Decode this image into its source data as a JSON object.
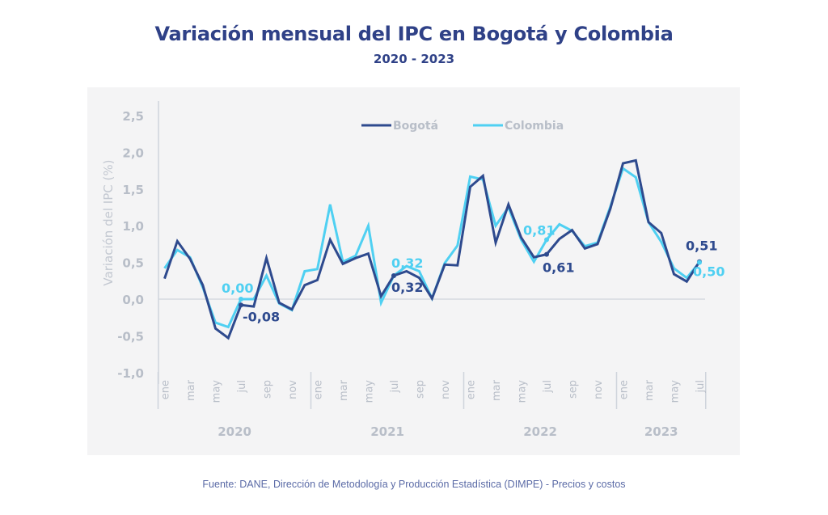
{
  "header": {
    "title": "Variación mensual del IPC en Bogotá y Colombia",
    "subtitle": "2020 - 2023"
  },
  "footer": {
    "source": "Fuente: DANE, Dirección de Metodología y Producción Estadística (DIMPE) - Precios y costos"
  },
  "colors": {
    "title": "#2f4187",
    "bogota": "#2e4a8e",
    "colombia": "#4fd0f2",
    "axis_text": "#b8bec8",
    "axis_line": "#cfd4dc",
    "panel_bg": "#f4f4f5"
  },
  "chart_data": {
    "type": "line",
    "title": "Variación mensual del IPC en Bogotá y Colombia",
    "subtitle": "2020 - 2023",
    "xlabel": "",
    "ylabel": "Variación del IPC (%)",
    "ylim": [
      -1.0,
      2.5
    ],
    "yticks": [
      "-1,0",
      "-0,5",
      "0,0",
      "0,5",
      "1,0",
      "1,5",
      "2,0",
      "2,5"
    ],
    "ytick_values": [
      -1.0,
      -0.5,
      0.0,
      0.5,
      1.0,
      1.5,
      2.0,
      2.5
    ],
    "grid": false,
    "zero_line": true,
    "legend_position": "top-center",
    "years": [
      "2020",
      "2021",
      "2022",
      "2023"
    ],
    "month_tick_labels": [
      "ene",
      "mar",
      "may",
      "jul",
      "sep",
      "nov"
    ],
    "x": [
      "ene-2020",
      "feb-2020",
      "mar-2020",
      "abr-2020",
      "may-2020",
      "jun-2020",
      "jul-2020",
      "ago-2020",
      "sep-2020",
      "oct-2020",
      "nov-2020",
      "dic-2020",
      "ene-2021",
      "feb-2021",
      "mar-2021",
      "abr-2021",
      "may-2021",
      "jun-2021",
      "jul-2021",
      "ago-2021",
      "sep-2021",
      "oct-2021",
      "nov-2021",
      "dic-2021",
      "ene-2022",
      "feb-2022",
      "mar-2022",
      "abr-2022",
      "may-2022",
      "jun-2022",
      "jul-2022",
      "ago-2022",
      "sep-2022",
      "oct-2022",
      "nov-2022",
      "dic-2022",
      "ene-2023",
      "feb-2023",
      "mar-2023",
      "abr-2023",
      "may-2023",
      "jun-2023",
      "jul-2023"
    ],
    "series": [
      {
        "name": "Bogotá",
        "color": "#2e4a8e",
        "values": [
          0.28,
          0.79,
          0.55,
          0.19,
          -0.4,
          -0.53,
          -0.08,
          -0.1,
          0.56,
          -0.05,
          -0.14,
          0.19,
          0.26,
          0.81,
          0.48,
          0.56,
          0.62,
          0.04,
          0.32,
          0.38,
          0.29,
          0.01,
          0.47,
          0.46,
          1.53,
          1.68,
          0.77,
          1.29,
          0.84,
          0.57,
          0.61,
          0.82,
          0.94,
          0.69,
          0.75,
          1.23,
          1.85,
          1.89,
          1.05,
          0.9,
          0.34,
          0.24,
          0.51
        ]
      },
      {
        "name": "Colombia",
        "color": "#4fd0f2",
        "values": [
          0.42,
          0.67,
          0.57,
          0.16,
          -0.32,
          -0.38,
          0.0,
          0.0,
          0.32,
          -0.06,
          -0.15,
          0.38,
          0.41,
          1.29,
          0.51,
          0.59,
          1.0,
          -0.05,
          0.32,
          0.45,
          0.38,
          0.01,
          0.49,
          0.73,
          1.67,
          1.63,
          1.0,
          1.25,
          0.81,
          0.51,
          0.81,
          1.02,
          0.93,
          0.72,
          0.77,
          1.26,
          1.78,
          1.66,
          1.05,
          0.78,
          0.42,
          0.29,
          0.5
        ]
      }
    ],
    "annotations": [
      {
        "series": "Colombia",
        "x": "jul-2020",
        "label": "0,00"
      },
      {
        "series": "Bogotá",
        "x": "jul-2020",
        "label": "-0,08"
      },
      {
        "series": "Colombia",
        "x": "jul-2021",
        "label": "0,32"
      },
      {
        "series": "Bogotá",
        "x": "jul-2021",
        "label": "0,32"
      },
      {
        "series": "Colombia",
        "x": "jul-2022",
        "label": "0,81"
      },
      {
        "series": "Bogotá",
        "x": "jul-2022",
        "label": "0,61"
      },
      {
        "series": "Bogotá",
        "x": "jul-2023",
        "label": "0,51"
      },
      {
        "series": "Colombia",
        "x": "jul-2023",
        "label": "0,50"
      }
    ]
  }
}
